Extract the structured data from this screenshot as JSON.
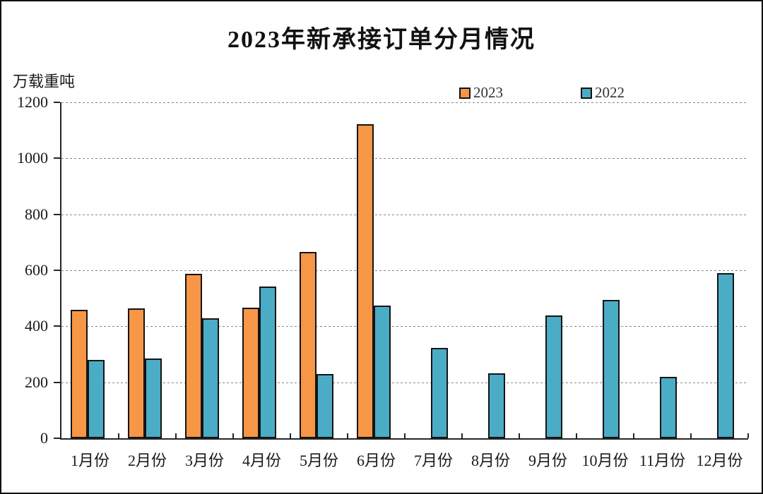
{
  "chart_data": {
    "type": "bar",
    "title": "2023年新承接订单分月情况",
    "ylabel": "万载重吨",
    "xlabel": "",
    "ylim": [
      0,
      1200
    ],
    "ytick_step": 200,
    "grid": "horizontal-dashed",
    "legend_position": "top-right-above-plot",
    "categories": [
      "1月份",
      "2月份",
      "3月份",
      "4月份",
      "5月份",
      "6月份",
      "7月份",
      "8月份",
      "9月份",
      "10月份",
      "11月份",
      "12月份"
    ],
    "series": [
      {
        "name": "2023",
        "color": "#F79646",
        "values": [
          459,
          463,
          588,
          466,
          665,
          1122,
          null,
          null,
          null,
          null,
          null,
          null
        ]
      },
      {
        "name": "2022",
        "color": "#4BACC6",
        "values": [
          281,
          284,
          428,
          543,
          230,
          475,
          323,
          232,
          438,
          493,
          219,
          590
        ]
      }
    ]
  }
}
